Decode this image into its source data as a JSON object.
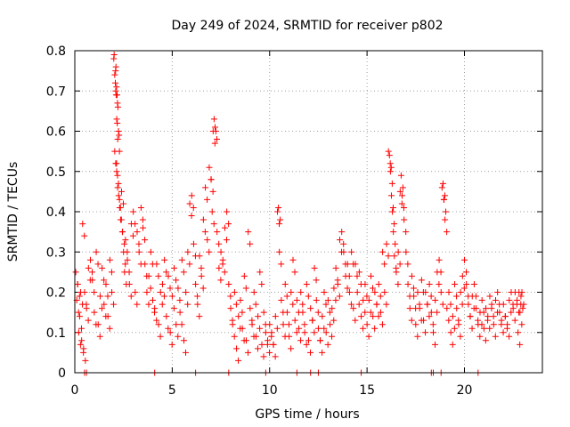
{
  "chart_data": {
    "type": "scatter",
    "title": "Day 249 of 2024, SRMTID for receiver p802",
    "xlabel": "GPS time / hours",
    "ylabel": "SRMTID / TECUs",
    "xlim": [
      0,
      24
    ],
    "ylim": [
      0,
      0.8
    ],
    "x_ticks": [
      0,
      5,
      10,
      15,
      20
    ],
    "x_tick_labels": [
      "0",
      "5",
      "10",
      "15",
      "20"
    ],
    "y_ticks": [
      0,
      0.1,
      0.2,
      0.3,
      0.4,
      0.5,
      0.6,
      0.7,
      0.8
    ],
    "y_tick_labels": [
      "0",
      "0.1",
      "0.2",
      "0.3",
      "0.4",
      "0.5",
      "0.6",
      "0.7",
      "0.8"
    ],
    "grid": true,
    "marker": "+",
    "color": "#ff0000",
    "series": [
      {
        "name": "SRMTID",
        "points": [
          [
            0.05,
            0.25
          ],
          [
            0.1,
            0.18
          ],
          [
            0.15,
            0.22
          ],
          [
            0.2,
            0.1
          ],
          [
            0.25,
            0.14
          ],
          [
            0.3,
            0.2
          ],
          [
            0.35,
            0.08
          ],
          [
            0.4,
            0.37
          ],
          [
            0.45,
            0.06
          ],
          [
            0.5,
            0.2
          ],
          [
            0.6,
            0.16
          ],
          [
            0.7,
            0.26
          ],
          [
            0.8,
            0.28
          ],
          [
            0.9,
            0.23
          ],
          [
            1.0,
            0.15
          ],
          [
            1.1,
            0.3
          ],
          [
            1.2,
            0.12
          ],
          [
            1.3,
            0.19
          ],
          [
            1.4,
            0.26
          ],
          [
            1.5,
            0.17
          ],
          [
            1.6,
            0.22
          ],
          [
            1.7,
            0.14
          ],
          [
            1.8,
            0.28
          ],
          [
            1.9,
            0.2
          ],
          [
            2.0,
            0.78
          ],
          [
            2.02,
            0.79
          ],
          [
            2.05,
            0.74
          ],
          [
            2.08,
            0.72
          ],
          [
            2.1,
            0.7
          ],
          [
            2.12,
            0.69
          ],
          [
            2.15,
            0.63
          ],
          [
            2.18,
            0.62
          ],
          [
            2.2,
            0.58
          ],
          [
            2.05,
            0.55
          ],
          [
            2.1,
            0.52
          ],
          [
            2.15,
            0.5
          ],
          [
            2.2,
            0.46
          ],
          [
            2.25,
            0.44
          ],
          [
            2.3,
            0.41
          ],
          [
            2.35,
            0.38
          ],
          [
            2.4,
            0.45
          ],
          [
            2.45,
            0.35
          ],
          [
            2.5,
            0.3
          ],
          [
            2.55,
            0.25
          ],
          [
            2.6,
            0.33
          ],
          [
            2.7,
            0.28
          ],
          [
            2.8,
            0.22
          ],
          [
            2.9,
            0.37
          ],
          [
            3.0,
            0.4
          ],
          [
            3.1,
            0.2
          ],
          [
            3.2,
            0.35
          ],
          [
            3.3,
            0.3
          ],
          [
            3.4,
            0.41
          ],
          [
            3.5,
            0.36
          ],
          [
            3.6,
            0.27
          ],
          [
            3.7,
            0.2
          ],
          [
            3.8,
            0.24
          ],
          [
            3.9,
            0.3
          ],
          [
            4.0,
            0.18
          ],
          [
            4.1,
            0.16
          ],
          [
            4.2,
            0.27
          ],
          [
            4.3,
            0.12
          ],
          [
            4.4,
            0.2
          ],
          [
            4.5,
            0.22
          ],
          [
            4.6,
            0.28
          ],
          [
            4.7,
            0.14
          ],
          [
            4.8,
            0.24
          ],
          [
            4.9,
            0.1
          ],
          [
            5.0,
            0.19
          ],
          [
            5.1,
            0.26
          ],
          [
            5.2,
            0.12
          ],
          [
            5.3,
            0.21
          ],
          [
            5.4,
            0.15
          ],
          [
            5.5,
            0.28
          ],
          [
            5.6,
            0.08
          ],
          [
            5.7,
            0.2
          ],
          [
            5.8,
            0.3
          ],
          [
            5.9,
            0.42
          ],
          [
            6.0,
            0.44
          ],
          [
            6.1,
            0.32
          ],
          [
            6.2,
            0.22
          ],
          [
            6.3,
            0.17
          ],
          [
            6.4,
            0.29
          ],
          [
            6.5,
            0.24
          ],
          [
            6.6,
            0.38
          ],
          [
            6.7,
            0.46
          ],
          [
            6.8,
            0.33
          ],
          [
            6.9,
            0.51
          ],
          [
            7.0,
            0.48
          ],
          [
            7.05,
            0.4
          ],
          [
            7.1,
            0.6
          ],
          [
            7.15,
            0.63
          ],
          [
            7.2,
            0.61
          ],
          [
            7.3,
            0.35
          ],
          [
            7.4,
            0.26
          ],
          [
            7.5,
            0.3
          ],
          [
            7.6,
            0.28
          ],
          [
            7.7,
            0.36
          ],
          [
            7.8,
            0.4
          ],
          [
            7.9,
            0.22
          ],
          [
            8.0,
            0.16
          ],
          [
            8.1,
            0.12
          ],
          [
            8.2,
            0.2
          ],
          [
            8.3,
            0.06
          ],
          [
            8.4,
            0.14
          ],
          [
            8.5,
            0.18
          ],
          [
            8.6,
            0.11
          ],
          [
            8.7,
            0.24
          ],
          [
            8.8,
            0.08
          ],
          [
            8.9,
            0.35
          ],
          [
            9.0,
            0.16
          ],
          [
            9.1,
            0.12
          ],
          [
            9.2,
            0.2
          ],
          [
            9.3,
            0.09
          ],
          [
            9.4,
            0.14
          ],
          [
            9.5,
            0.25
          ],
          [
            9.6,
            0.07
          ],
          [
            9.7,
            0.15
          ],
          [
            9.8,
            0.1
          ],
          [
            9.9,
            0.08
          ],
          [
            10.0,
            0.12
          ],
          [
            10.1,
            0.1
          ],
          [
            10.2,
            0.07
          ],
          [
            10.3,
            0.14
          ],
          [
            10.4,
            0.4
          ],
          [
            10.45,
            0.41
          ],
          [
            10.5,
            0.3
          ],
          [
            10.6,
            0.18
          ],
          [
            10.7,
            0.12
          ],
          [
            10.8,
            0.22
          ],
          [
            10.9,
            0.15
          ],
          [
            11.0,
            0.09
          ],
          [
            11.1,
            0.2
          ],
          [
            11.2,
            0.28
          ],
          [
            11.3,
            0.13
          ],
          [
            11.4,
            0.18
          ],
          [
            11.5,
            0.11
          ],
          [
            11.6,
            0.2
          ],
          [
            11.7,
            0.15
          ],
          [
            11.8,
            0.1
          ],
          [
            11.9,
            0.22
          ],
          [
            12.0,
            0.08
          ],
          [
            12.1,
            0.16
          ],
          [
            12.2,
            0.13
          ],
          [
            12.3,
            0.26
          ],
          [
            12.4,
            0.18
          ],
          [
            12.5,
            0.11
          ],
          [
            12.6,
            0.08
          ],
          [
            12.7,
            0.14
          ],
          [
            12.8,
            0.2
          ],
          [
            12.9,
            0.1
          ],
          [
            13.0,
            0.18
          ],
          [
            13.1,
            0.12
          ],
          [
            13.2,
            0.16
          ],
          [
            13.3,
            0.21
          ],
          [
            13.4,
            0.26
          ],
          [
            13.5,
            0.22
          ],
          [
            13.6,
            0.33
          ],
          [
            13.7,
            0.35
          ],
          [
            13.8,
            0.3
          ],
          [
            13.9,
            0.24
          ],
          [
            14.0,
            0.27
          ],
          [
            14.1,
            0.2
          ],
          [
            14.2,
            0.3
          ],
          [
            14.3,
            0.16
          ],
          [
            14.4,
            0.27
          ],
          [
            14.5,
            0.2
          ],
          [
            14.6,
            0.25
          ],
          [
            14.7,
            0.14
          ],
          [
            14.8,
            0.18
          ],
          [
            14.9,
            0.22
          ],
          [
            15.0,
            0.12
          ],
          [
            15.1,
            0.18
          ],
          [
            15.2,
            0.24
          ],
          [
            15.3,
            0.14
          ],
          [
            15.4,
            0.2
          ],
          [
            15.5,
            0.17
          ],
          [
            15.6,
            0.22
          ],
          [
            15.7,
            0.15
          ],
          [
            15.8,
            0.3
          ],
          [
            15.9,
            0.2
          ],
          [
            16.0,
            0.32
          ],
          [
            16.1,
            0.55
          ],
          [
            16.15,
            0.54
          ],
          [
            16.2,
            0.5
          ],
          [
            16.25,
            0.44
          ],
          [
            16.3,
            0.4
          ],
          [
            16.35,
            0.35
          ],
          [
            16.4,
            0.29
          ],
          [
            16.5,
            0.25
          ],
          [
            16.6,
            0.3
          ],
          [
            16.7,
            0.45
          ],
          [
            16.75,
            0.49
          ],
          [
            16.8,
            0.44
          ],
          [
            16.9,
            0.38
          ],
          [
            17.0,
            0.3
          ],
          [
            17.1,
            0.22
          ],
          [
            17.2,
            0.16
          ],
          [
            17.3,
            0.24
          ],
          [
            17.4,
            0.19
          ],
          [
            17.5,
            0.12
          ],
          [
            17.6,
            0.2
          ],
          [
            17.7,
            0.16
          ],
          [
            17.8,
            0.23
          ],
          [
            17.9,
            0.13
          ],
          [
            18.0,
            0.2
          ],
          [
            18.1,
            0.17
          ],
          [
            18.2,
            0.22
          ],
          [
            18.3,
            0.15
          ],
          [
            18.4,
            0.1
          ],
          [
            18.5,
            0.18
          ],
          [
            18.6,
            0.25
          ],
          [
            18.7,
            0.28
          ],
          [
            18.8,
            0.2
          ],
          [
            18.85,
            0.46
          ],
          [
            18.9,
            0.47
          ],
          [
            18.95,
            0.43
          ],
          [
            19.0,
            0.38
          ],
          [
            19.1,
            0.16
          ],
          [
            19.2,
            0.2
          ],
          [
            19.3,
            0.1
          ],
          [
            19.4,
            0.14
          ],
          [
            19.5,
            0.22
          ],
          [
            19.6,
            0.16
          ],
          [
            19.7,
            0.12
          ],
          [
            19.8,
            0.2
          ],
          [
            19.9,
            0.24
          ],
          [
            20.0,
            0.28
          ],
          [
            20.1,
            0.22
          ],
          [
            20.2,
            0.17
          ],
          [
            20.3,
            0.14
          ],
          [
            20.4,
            0.19
          ],
          [
            20.5,
            0.22
          ],
          [
            20.6,
            0.16
          ],
          [
            20.7,
            0.12
          ],
          [
            20.8,
            0.15
          ],
          [
            20.9,
            0.18
          ],
          [
            21.0,
            0.11
          ],
          [
            21.1,
            0.16
          ],
          [
            21.2,
            0.14
          ],
          [
            21.3,
            0.19
          ],
          [
            21.4,
            0.17
          ],
          [
            21.5,
            0.12
          ],
          [
            21.6,
            0.18
          ],
          [
            21.7,
            0.2
          ],
          [
            21.8,
            0.15
          ],
          [
            21.9,
            0.13
          ],
          [
            22.0,
            0.17
          ],
          [
            22.1,
            0.14
          ],
          [
            22.2,
            0.12
          ],
          [
            22.3,
            0.18
          ],
          [
            22.4,
            0.2
          ],
          [
            22.5,
            0.16
          ],
          [
            22.6,
            0.2
          ],
          [
            22.7,
            0.18
          ],
          [
            22.75,
            0.1
          ],
          [
            22.8,
            0.2
          ],
          [
            22.85,
            0.15
          ],
          [
            22.9,
            0.19
          ],
          [
            22.95,
            0.2
          ]
        ],
        "zero_points": [
          0.5,
          0.6,
          4.1,
          6.2,
          7.9,
          9.8,
          11.4,
          12.1,
          12.5,
          14.7,
          18.3,
          18.4,
          18.8,
          20.7
        ]
      }
    ]
  }
}
